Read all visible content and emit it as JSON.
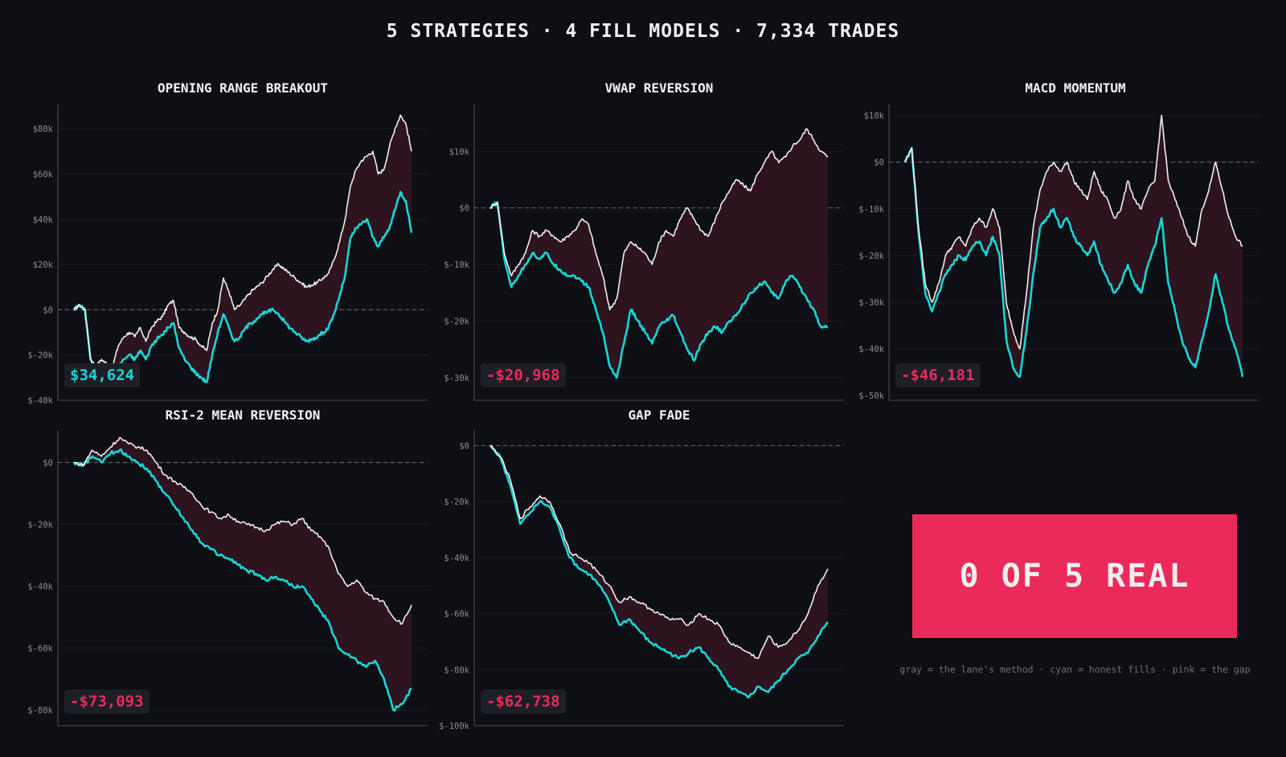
{
  "page_title": "5 STRATEGIES · 4 FILL MODELS · 7,334 TRADES",
  "verdict": "0 OF 5 REAL",
  "legend_note": "gray = the lane's method · cyan = honest fills · pink = the gap",
  "colors": {
    "background": "#0d0f14",
    "method_line": "#f4eef0",
    "honest_line": "#18d6d6",
    "gap_fill": "#2e141f",
    "positive": "#18d6d6",
    "negative": "#ea2a5b",
    "verdict_bg": "#ea2a5b"
  },
  "chart_data": [
    {
      "type": "line",
      "title": "OPENING RANGE BREAKOUT",
      "ylim": [
        -40,
        90
      ],
      "yticks": [
        80,
        60,
        40,
        20,
        0,
        -20,
        -40
      ],
      "ytick_labels": [
        "$80k",
        "$60k",
        "$40k",
        "$20k",
        "$0",
        "$-20k",
        "$-40k"
      ],
      "zero_line": true,
      "final_value": "$34,624",
      "final_sign": "positive",
      "series": [
        {
          "role": "method",
          "values": [
            0,
            2,
            0,
            -22,
            -25,
            -22,
            -24,
            -25,
            -16,
            -12,
            -10,
            -12,
            -8,
            -14,
            -8,
            -5,
            -3,
            2,
            4,
            -8,
            -10,
            -12,
            -13,
            -16,
            -18,
            -6,
            0,
            14,
            8,
            0,
            2,
            5,
            8,
            10,
            12,
            15,
            18,
            20,
            18,
            16,
            14,
            12,
            10,
            11,
            12,
            14,
            16,
            22,
            30,
            40,
            55,
            62,
            66,
            68,
            70,
            60,
            62,
            72,
            80,
            86,
            82,
            70
          ]
        },
        {
          "role": "honest",
          "values": [
            0,
            2,
            0,
            -22,
            -27,
            -26,
            -28,
            -29,
            -25,
            -22,
            -20,
            -22,
            -18,
            -22,
            -16,
            -13,
            -11,
            -8,
            -6,
            -17,
            -22,
            -25,
            -28,
            -30,
            -32,
            -20,
            -10,
            -2,
            -8,
            -14,
            -12,
            -8,
            -6,
            -4,
            -2,
            -1,
            0,
            -2,
            -5,
            -8,
            -10,
            -12,
            -14,
            -13,
            -12,
            -10,
            -8,
            -2,
            6,
            15,
            32,
            36,
            38,
            40,
            32,
            28,
            32,
            36,
            44,
            52,
            48,
            34
          ]
        }
      ]
    },
    {
      "type": "line",
      "title": "VWAP REVERSION",
      "ylim": [
        -34,
        18
      ],
      "yticks": [
        10,
        0,
        -10,
        -20,
        -30
      ],
      "ytick_labels": [
        "$10k",
        "$0",
        "$-10k",
        "$-20k",
        "$-30k"
      ],
      "zero_line": true,
      "final_value": "-$20,968",
      "final_sign": "negative",
      "series": [
        {
          "role": "method",
          "values": [
            0,
            1,
            -8,
            -12,
            -10,
            -8,
            -4,
            -5,
            -4,
            -5,
            -6,
            -5,
            -4,
            -2,
            -3,
            -8,
            -12,
            -18,
            -16,
            -8,
            -6,
            -7,
            -8,
            -10,
            -6,
            -4,
            -5,
            -2,
            0,
            -2,
            -4,
            -5,
            -2,
            1,
            3,
            5,
            4,
            3,
            6,
            8,
            10,
            8,
            9,
            11,
            12,
            14,
            12,
            10,
            9
          ]
        },
        {
          "role": "honest",
          "values": [
            0,
            1,
            -9,
            -14,
            -12,
            -10,
            -8,
            -9,
            -8,
            -10,
            -11,
            -12,
            -12,
            -13,
            -14,
            -18,
            -22,
            -28,
            -30,
            -24,
            -18,
            -20,
            -22,
            -24,
            -21,
            -20,
            -19,
            -22,
            -25,
            -27,
            -24,
            -22,
            -21,
            -22,
            -20,
            -19,
            -17,
            -15,
            -14,
            -13,
            -15,
            -16,
            -13,
            -12,
            -14,
            -16,
            -18,
            -21,
            -21
          ]
        }
      ]
    },
    {
      "type": "line",
      "title": "MACD MOMENTUM",
      "ylim": [
        -51,
        12
      ],
      "yticks": [
        10,
        0,
        -10,
        -20,
        -30,
        -40,
        -50
      ],
      "ytick_labels": [
        "$10k",
        "$0",
        "$-10k",
        "$-20k",
        "$-30k",
        "$-40k",
        "$-50k"
      ],
      "zero_line": true,
      "final_value": "-$46,181",
      "final_sign": "negative",
      "series": [
        {
          "role": "method",
          "values": [
            0,
            3,
            -14,
            -26,
            -30,
            -26,
            -20,
            -18,
            -16,
            -18,
            -14,
            -12,
            -14,
            -10,
            -14,
            -30,
            -36,
            -40,
            -28,
            -14,
            -6,
            -2,
            0,
            -2,
            0,
            -4,
            -6,
            -8,
            -2,
            -6,
            -8,
            -12,
            -10,
            -4,
            -8,
            -10,
            -6,
            -4,
            10,
            -4,
            -8,
            -12,
            -16,
            -18,
            -10,
            -6,
            0,
            -6,
            -12,
            -16,
            -18
          ]
        },
        {
          "role": "honest",
          "values": [
            0,
            3,
            -15,
            -28,
            -32,
            -28,
            -24,
            -22,
            -20,
            -21,
            -18,
            -17,
            -20,
            -16,
            -20,
            -38,
            -44,
            -46,
            -36,
            -24,
            -14,
            -12,
            -10,
            -14,
            -12,
            -16,
            -18,
            -20,
            -17,
            -22,
            -25,
            -28,
            -26,
            -22,
            -26,
            -28,
            -22,
            -18,
            -12,
            -26,
            -32,
            -38,
            -42,
            -44,
            -38,
            -32,
            -24,
            -30,
            -36,
            -40,
            -46
          ]
        }
      ]
    },
    {
      "type": "line",
      "title": "RSI-2 MEAN REVERSION",
      "ylim": [
        -85,
        10
      ],
      "yticks": [
        0,
        -20,
        -40,
        -60,
        -80
      ],
      "ytick_labels": [
        "$0",
        "$-20k",
        "$-40k",
        "$-60k",
        "$-80k"
      ],
      "zero_line": true,
      "final_value": "-$73,093",
      "final_sign": "negative",
      "series": [
        {
          "role": "method",
          "values": [
            0,
            -1,
            4,
            2,
            5,
            8,
            6,
            5,
            4,
            0,
            -4,
            -6,
            -8,
            -10,
            -14,
            -16,
            -18,
            -17,
            -19,
            -20,
            -21,
            -22,
            -20,
            -19,
            -20,
            -18,
            -22,
            -24,
            -28,
            -36,
            -40,
            -38,
            -42,
            -44,
            -45,
            -50,
            -52,
            -46
          ]
        },
        {
          "role": "honest",
          "values": [
            0,
            -1,
            2,
            0,
            3,
            4,
            2,
            0,
            -2,
            -6,
            -10,
            -14,
            -18,
            -22,
            -26,
            -28,
            -30,
            -31,
            -33,
            -35,
            -36,
            -38,
            -37,
            -38,
            -40,
            -40,
            -44,
            -48,
            -52,
            -60,
            -62,
            -64,
            -66,
            -64,
            -70,
            -80,
            -78,
            -73
          ]
        }
      ]
    },
    {
      "type": "line",
      "title": "GAP FADE",
      "ylim": [
        -100,
        5
      ],
      "yticks": [
        0,
        -20,
        -40,
        -60,
        -80,
        -100
      ],
      "ytick_labels": [
        "$0",
        "$-20k",
        "$-40k",
        "$-60k",
        "$-80k",
        "$-100k"
      ],
      "zero_line": true,
      "final_value": "-$62,738",
      "final_sign": "negative",
      "series": [
        {
          "role": "method",
          "values": [
            0,
            -4,
            -12,
            -26,
            -22,
            -18,
            -20,
            -28,
            -38,
            -40,
            -42,
            -46,
            -50,
            -56,
            -54,
            -56,
            -58,
            -60,
            -62,
            -62,
            -64,
            -60,
            -62,
            -64,
            -70,
            -72,
            -74,
            -76,
            -68,
            -72,
            -70,
            -66,
            -60,
            -50,
            -44
          ]
        },
        {
          "role": "honest",
          "values": [
            0,
            -4,
            -14,
            -28,
            -24,
            -20,
            -22,
            -30,
            -40,
            -44,
            -46,
            -50,
            -56,
            -64,
            -62,
            -66,
            -70,
            -72,
            -74,
            -76,
            -74,
            -72,
            -76,
            -80,
            -86,
            -88,
            -90,
            -86,
            -88,
            -84,
            -80,
            -76,
            -74,
            -68,
            -63
          ]
        }
      ]
    }
  ]
}
